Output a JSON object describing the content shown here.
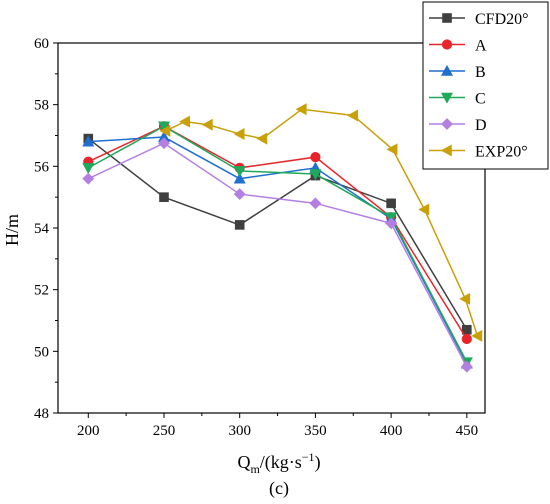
{
  "chart_data": {
    "type": "line",
    "title": "",
    "xlabel": "Q",
    "xlabel_sub": "m",
    "xlabel_unit": "/(kg·s",
    "xlabel_sup": "−1",
    "xlabel_close": ")",
    "ylabel": "H/m",
    "caption": "(c)",
    "xlim": [
      180,
      462
    ],
    "ylim": [
      48,
      60
    ],
    "xticks": [
      "200",
      "250",
      "300",
      "350",
      "400",
      "450"
    ],
    "xtick_values": [
      200,
      250,
      300,
      350,
      400,
      450
    ],
    "yticks": [
      "48",
      "50",
      "52",
      "54",
      "56",
      "58",
      "60"
    ],
    "ytick_values": [
      48,
      50,
      52,
      54,
      56,
      58,
      60
    ],
    "legend_position": "top-right",
    "series": [
      {
        "name": "CFD20°",
        "color": "#3f3f3f",
        "marker": "square",
        "x": [
          200,
          250,
          300,
          350,
          400,
          450
        ],
        "y": [
          56.9,
          55.0,
          54.1,
          55.7,
          54.8,
          50.7
        ]
      },
      {
        "name": "A",
        "color": "#e8252a",
        "marker": "circle",
        "x": [
          200,
          250,
          300,
          350,
          400,
          450
        ],
        "y": [
          56.15,
          57.3,
          55.95,
          56.3,
          54.35,
          50.4
        ]
      },
      {
        "name": "B",
        "color": "#1f6fd1",
        "marker": "triangle-up",
        "x": [
          200,
          250,
          300,
          350,
          400,
          450
        ],
        "y": [
          56.8,
          56.95,
          55.6,
          55.95,
          54.3,
          49.6
        ]
      },
      {
        "name": "C",
        "color": "#1ea95b",
        "marker": "triangle-down",
        "x": [
          200,
          250,
          300,
          350,
          400,
          450
        ],
        "y": [
          55.95,
          57.3,
          55.85,
          55.75,
          54.35,
          49.65
        ]
      },
      {
        "name": "D",
        "color": "#b47fe3",
        "marker": "diamond",
        "x": [
          200,
          250,
          300,
          350,
          400,
          450
        ],
        "y": [
          55.6,
          56.75,
          55.1,
          54.8,
          54.15,
          49.5
        ]
      },
      {
        "name": "EXP20°",
        "color": "#c9a008",
        "marker": "triangle-left",
        "x": [
          251,
          264,
          279,
          300,
          315,
          341,
          375,
          401,
          422,
          449,
          457
        ],
        "y": [
          57.15,
          57.45,
          57.35,
          57.05,
          56.9,
          57.85,
          57.65,
          56.55,
          54.6,
          51.7,
          50.5
        ]
      }
    ]
  }
}
